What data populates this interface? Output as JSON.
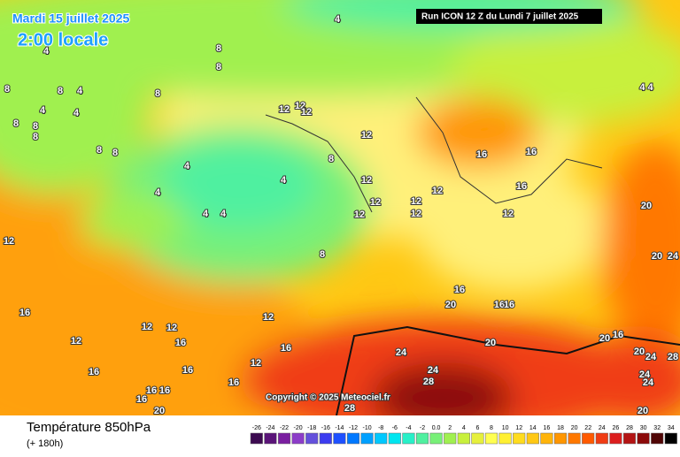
{
  "header": {
    "date": "Mardi 15 juillet 2025",
    "time": "2:00 locale",
    "run": "Run ICON 12 Z du Lundi 7 juillet 2025"
  },
  "map": {
    "copyright": "Copyright © 2025 Meteociel.fr",
    "contour_labels": [
      "4",
      "4",
      "8",
      "8",
      "8",
      "8",
      "4",
      "8",
      "4",
      "4",
      "8",
      "8",
      "8",
      "8",
      "8",
      "4 4",
      "12",
      "12",
      "12",
      "12",
      "8",
      "16",
      "16",
      "4",
      "4",
      "4",
      "12",
      "12",
      "12",
      "12",
      "16",
      "12",
      "12",
      "4",
      "4",
      "12",
      "20",
      "12",
      "8",
      "20",
      "24",
      "16",
      "20",
      "16",
      "16",
      "16",
      "12",
      "12",
      "12",
      "12",
      "16",
      "20",
      "16",
      "20",
      "24",
      "16",
      "20",
      "24",
      "28",
      "12",
      "16",
      "16",
      "24",
      "24",
      "28",
      "16",
      "24",
      "16",
      "16",
      "16",
      "28",
      "20",
      "20"
    ]
  },
  "footer": {
    "title": "Température 850hPa",
    "subtitle": "(+ 180h)"
  },
  "legend": {
    "labels": [
      "-26",
      "-24",
      "-22",
      "-20",
      "-18",
      "-16",
      "-14",
      "-12",
      "-10",
      "-8",
      "-6",
      "-4",
      "-2",
      "0.0",
      "2",
      "4",
      "6",
      "8",
      "10",
      "12",
      "14",
      "16",
      "18",
      "20",
      "22",
      "24",
      "26",
      "28",
      "30",
      "32",
      "34"
    ],
    "colors": [
      "#3c0a50",
      "#5a1478",
      "#7a1ea0",
      "#8c3cc8",
      "#6450dc",
      "#3c3cf0",
      "#1e50ff",
      "#0078ff",
      "#00a0ff",
      "#00c8ff",
      "#00e6f0",
      "#28f0c8",
      "#50f0a0",
      "#78f078",
      "#a0f050",
      "#c8f03c",
      "#e6f03c",
      "#ffff50",
      "#fff032",
      "#ffdc1e",
      "#ffc814",
      "#ffb40a",
      "#ff9600",
      "#ff7800",
      "#ff5a00",
      "#f03c14",
      "#dc1e1e",
      "#b41414",
      "#8c0a0a",
      "#500505",
      "#000000"
    ]
  }
}
